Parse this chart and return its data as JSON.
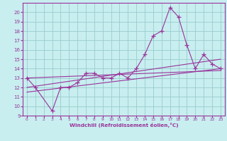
{
  "xlabel": "Windchill (Refroidissement éolien,°C)",
  "bg_color": "#c8eef0",
  "line_color": "#993399",
  "grid_color": "#99cccc",
  "axis_color": "#993399",
  "tick_color": "#993399",
  "xlim": [
    -0.5,
    23.5
  ],
  "ylim": [
    9,
    21
  ],
  "xticks": [
    0,
    1,
    2,
    3,
    4,
    5,
    6,
    7,
    8,
    9,
    10,
    11,
    12,
    13,
    14,
    15,
    16,
    17,
    18,
    19,
    20,
    21,
    22,
    23
  ],
  "yticks": [
    9,
    10,
    11,
    12,
    13,
    14,
    15,
    16,
    17,
    18,
    19,
    20
  ],
  "series1_x": [
    0,
    1,
    3,
    4,
    5,
    6,
    7,
    8,
    9,
    10,
    11,
    12,
    13,
    14,
    15,
    16,
    17,
    18,
    19,
    20,
    21,
    22,
    23
  ],
  "series1_y": [
    13,
    12,
    9.5,
    12,
    12,
    12.5,
    13.5,
    13.5,
    13,
    13,
    13.5,
    13,
    14,
    15.5,
    17.5,
    18,
    20.5,
    19.5,
    16.5,
    14,
    15.5,
    14.5,
    14
  ],
  "series2_x": [
    0,
    23
  ],
  "series2_y": [
    11.5,
    14.0
  ],
  "series3_x": [
    0,
    23
  ],
  "series3_y": [
    12.0,
    15.0
  ],
  "series4_x": [
    0,
    23
  ],
  "series4_y": [
    13.0,
    13.8
  ]
}
